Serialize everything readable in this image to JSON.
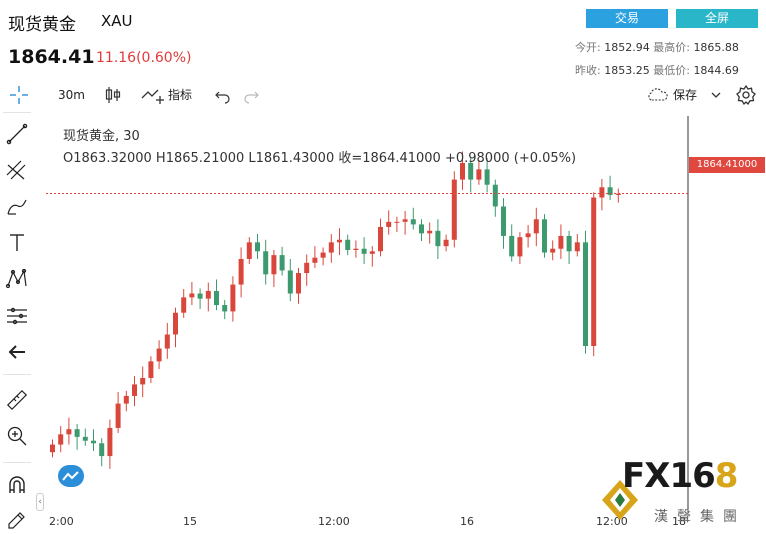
{
  "header": {
    "title": "现货黄金",
    "code": "XAU",
    "price": "1864.41",
    "change": "11.16(0.60%)",
    "trade_label": "交易",
    "fullscreen_label": "全屏",
    "stats": {
      "open_label": "今开:",
      "open": "1852.94",
      "high_label": "最高价:",
      "high": "1865.88",
      "prev_close_label": "昨收:",
      "prev_close": "1853.25",
      "low_label": "最低价:",
      "low": "1844.69"
    }
  },
  "toolbar": {
    "interval": "30m",
    "indicators_label": "指标",
    "save_label": "保存"
  },
  "legend": {
    "title": "现货黄金, 30",
    "ohlc": "O1863.32000  H1865.21000  L1861.43000  收=1864.41000  +0.98000 (+0.05%)"
  },
  "price_tag": "1864.41000",
  "x_axis": {
    "labels": [
      "2:00",
      "15",
      "12:00",
      "16",
      "12:00",
      "18"
    ]
  },
  "watermark": {
    "brand_a": "FX16",
    "brand_b": "8",
    "sub": "漢聲集團"
  },
  "colors": {
    "up": "#d9473c",
    "down": "#3d9a6e",
    "price_line": "#e0473e",
    "tag": "#e0473e"
  },
  "icons": [
    "crosshair-icon",
    "trend-line-icon",
    "fib-icon",
    "brush-icon",
    "text-icon",
    "pattern-icon",
    "measure-icon",
    "back-arrow-icon",
    "ruler-icon",
    "zoom-in-icon",
    "magnet-icon",
    "pencil-lock-icon"
  ],
  "chart_data": {
    "type": "candlestick",
    "title": "现货黄金, 30",
    "last_price": 1864.41,
    "ylim": [
      1840,
      1870
    ],
    "x_tick_labels": [
      "2:00",
      "15",
      "12:00",
      "16",
      "12:00",
      "18"
    ],
    "candles_close": [
      1844.8,
      1845.6,
      1846.0,
      1845.4,
      1845.1,
      1844.9,
      1843.9,
      1846.1,
      1848.0,
      1848.6,
      1849.5,
      1850.0,
      1851.3,
      1852.3,
      1853.4,
      1855.1,
      1856.3,
      1856.6,
      1856.2,
      1856.8,
      1855.7,
      1855.2,
      1857.3,
      1859.3,
      1860.6,
      1859.9,
      1858.1,
      1859.6,
      1858.4,
      1856.6,
      1858.2,
      1859.0,
      1859.4,
      1859.8,
      1860.6,
      1860.8,
      1860.0,
      1860.1,
      1859.7,
      1859.9,
      1861.8,
      1862.2,
      1862.2,
      1862.4,
      1862.0,
      1861.3,
      1861.5,
      1860.3,
      1860.8,
      1865.5,
      1866.8,
      1865.5,
      1866.3,
      1865.1,
      1863.4,
      1861.1,
      1859.5,
      1861.0,
      1861.3,
      1862.4,
      1859.8,
      1860.1,
      1861.1,
      1859.9,
      1860.6,
      1852.5,
      1864.1,
      1864.9,
      1864.3,
      1864.4
    ]
  }
}
